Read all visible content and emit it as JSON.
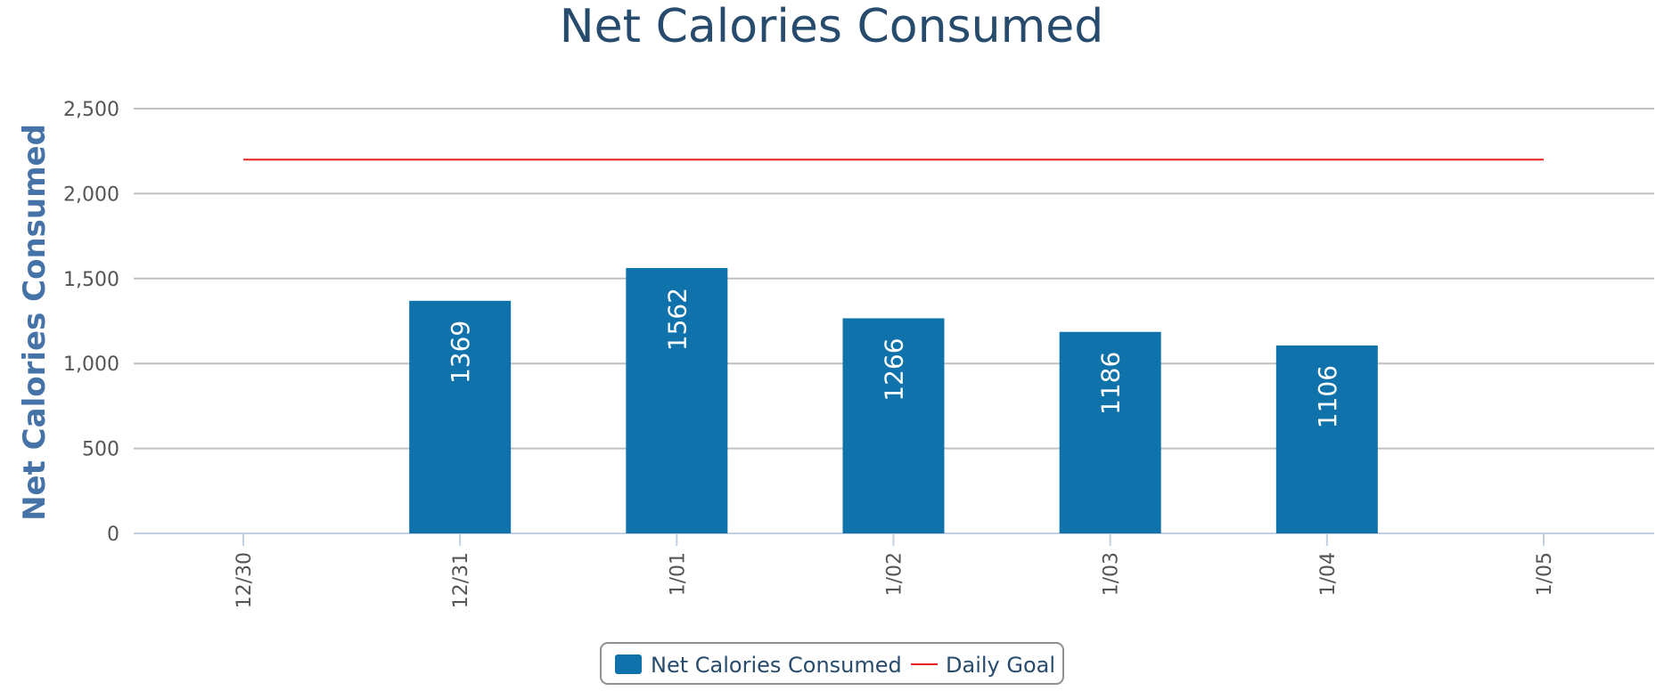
{
  "chart_data": {
    "type": "bar",
    "title": "Net Calories Consumed",
    "xlabel": "",
    "ylabel": "Net Calories Consumed",
    "categories": [
      "12/30",
      "12/31",
      "1/01",
      "1/02",
      "1/03",
      "1/04",
      "1/05"
    ],
    "ylim": [
      0,
      2500
    ],
    "yticks": [
      0,
      500,
      1000,
      1500,
      2000,
      2500
    ],
    "ytick_labels": [
      "0",
      "500",
      "1,000",
      "1,500",
      "2,000",
      "2,500"
    ],
    "series": [
      {
        "name": "Net Calories Consumed",
        "kind": "bar",
        "color": "#0f72ab",
        "values": [
          null,
          1369,
          1562,
          1266,
          1186,
          1106,
          null
        ],
        "labels": [
          "",
          "1369",
          "1562",
          "1266",
          "1186",
          "1106",
          ""
        ]
      },
      {
        "name": "Daily Goal",
        "kind": "line",
        "color": "#e8211d",
        "values": [
          2200,
          2200,
          2200,
          2200,
          2200,
          2200,
          2200
        ]
      }
    ],
    "grid": true,
    "legend": "bottom-center"
  }
}
